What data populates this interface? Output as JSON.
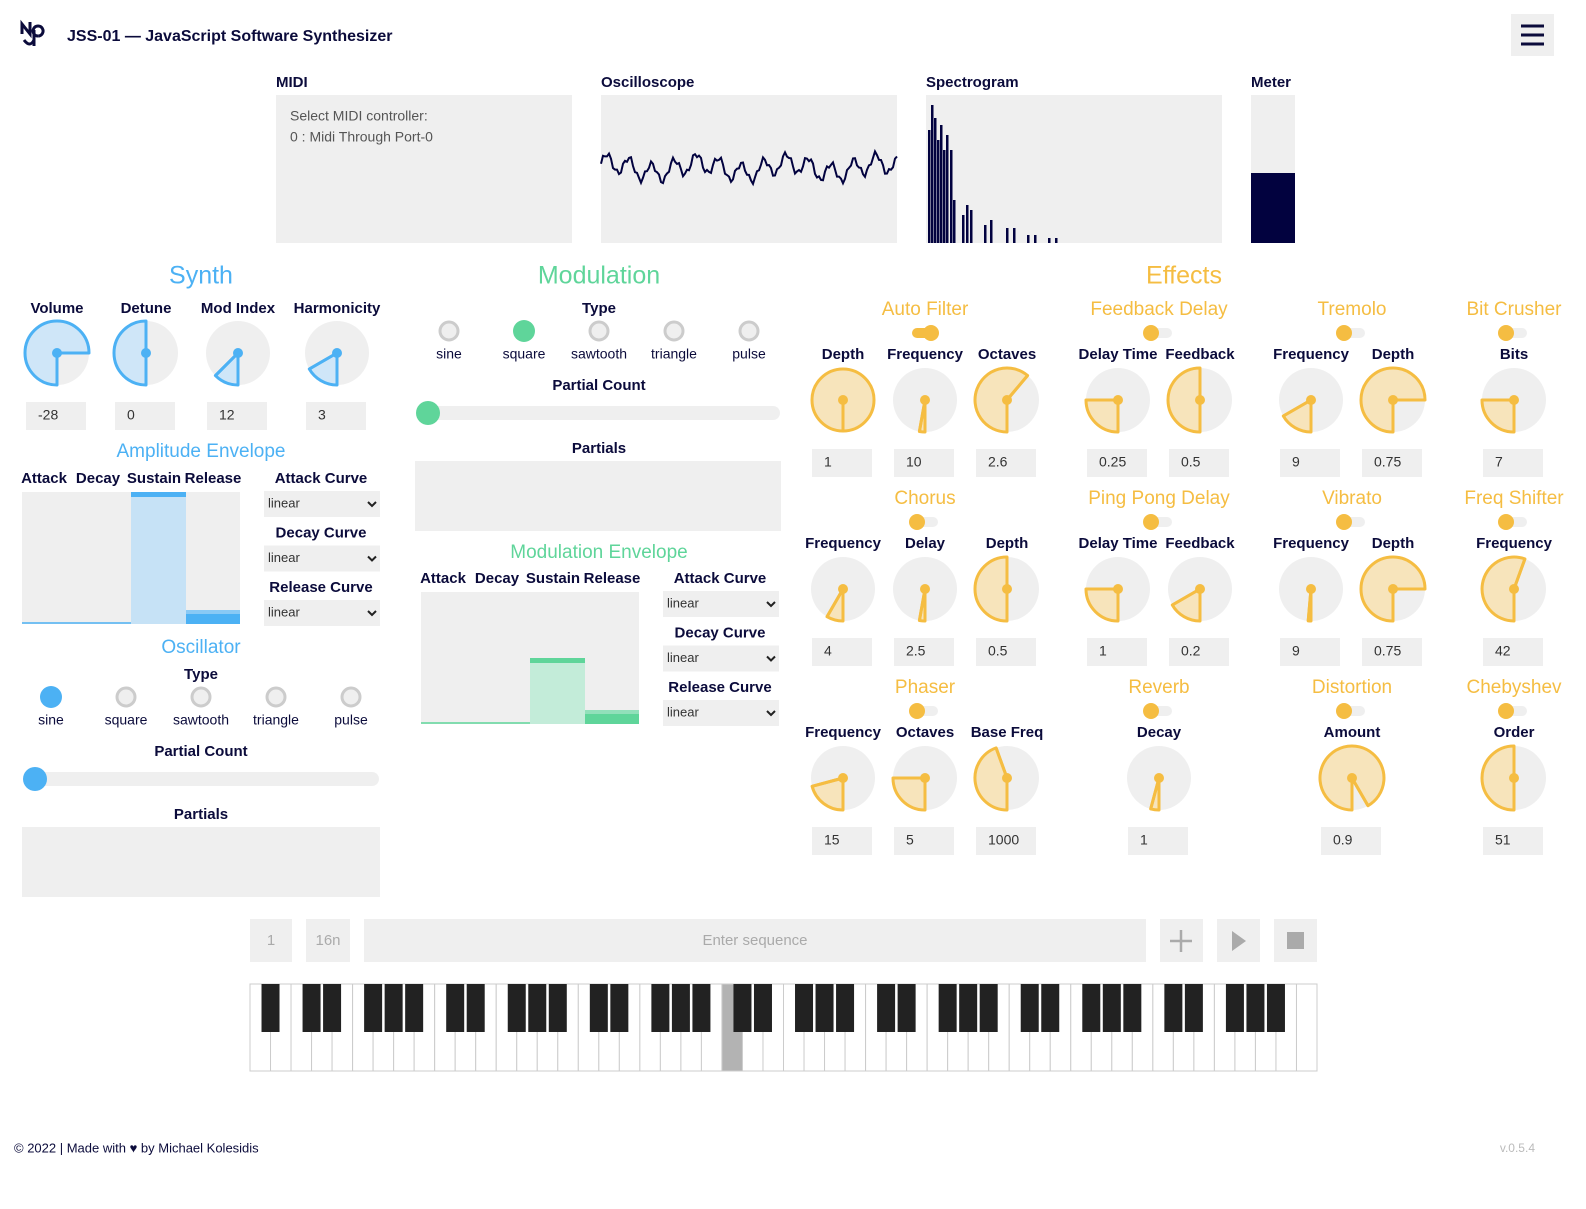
{
  "header": {
    "title": "JSS-01 — JavaScript Software Synthesizer"
  },
  "monitors": {
    "midi": {
      "title": "MIDI",
      "lines": [
        "Select MIDI controller:",
        "0 : Midi Through Port-0"
      ]
    },
    "oscilloscope": "Oscilloscope",
    "spectrogram": "Spectrogram",
    "meter": "Meter"
  },
  "synth": {
    "title": "Synth",
    "knobs": [
      {
        "label": "Volume",
        "value": -28
      },
      {
        "label": "Detune",
        "value": 0
      },
      {
        "label": "Mod Index",
        "value": 12
      },
      {
        "label": "Harmonicity",
        "value": 3
      }
    ],
    "amplitude_envelope": {
      "title": "Amplitude Envelope",
      "stages": [
        "Attack",
        "Decay",
        "Sustain",
        "Release"
      ],
      "curves": [
        {
          "label": "Attack Curve",
          "value": "linear"
        },
        {
          "label": "Decay Curve",
          "value": "linear"
        },
        {
          "label": "Release Curve",
          "value": "linear"
        }
      ]
    },
    "oscillator": {
      "title": "Oscillator",
      "type_label": "Type",
      "types": [
        "sine",
        "square",
        "sawtooth",
        "triangle",
        "pulse"
      ],
      "selected": 0,
      "partial_count": "Partial Count",
      "partials": "Partials"
    }
  },
  "modulation": {
    "title": "Modulation",
    "type_label": "Type",
    "types": [
      "sine",
      "square",
      "sawtooth",
      "triangle",
      "pulse"
    ],
    "selected": 1,
    "partial_count": "Partial Count",
    "partials": "Partials",
    "envelope": {
      "title": "Modulation Envelope",
      "stages": [
        "Attack",
        "Decay",
        "Sustain",
        "Release"
      ],
      "curves": [
        {
          "label": "Attack Curve",
          "value": "linear"
        },
        {
          "label": "Decay Curve",
          "value": "linear"
        },
        {
          "label": "Release Curve",
          "value": "linear"
        }
      ]
    }
  },
  "effects": {
    "title": "Effects",
    "units": [
      {
        "name": "Auto Filter",
        "enabled": true,
        "params": [
          {
            "label": "Depth",
            "value": 1
          },
          {
            "label": "Frequency",
            "value": 10
          },
          {
            "label": "Octaves",
            "value": 2.6
          }
        ]
      },
      {
        "name": "Feedback Delay",
        "enabled": false,
        "params": [
          {
            "label": "Delay Time",
            "value": 0.25
          },
          {
            "label": "Feedback",
            "value": 0.5
          }
        ]
      },
      {
        "name": "Tremolo",
        "enabled": false,
        "params": [
          {
            "label": "Frequency",
            "value": 9
          },
          {
            "label": "Depth",
            "value": 0.75
          }
        ]
      },
      {
        "name": "Bit Crusher",
        "enabled": false,
        "params": [
          {
            "label": "Bits",
            "value": 7
          }
        ]
      },
      {
        "name": "Chorus",
        "enabled": false,
        "params": [
          {
            "label": "Frequency",
            "value": 4
          },
          {
            "label": "Delay",
            "value": 2.5
          },
          {
            "label": "Depth",
            "value": 0.5
          }
        ]
      },
      {
        "name": "Ping Pong Delay",
        "enabled": false,
        "params": [
          {
            "label": "Delay Time",
            "value": 1
          },
          {
            "label": "Feedback",
            "value": 0.2
          }
        ]
      },
      {
        "name": "Vibrato",
        "enabled": false,
        "params": [
          {
            "label": "Frequency",
            "value": 9
          },
          {
            "label": "Depth",
            "value": 0.75
          }
        ]
      },
      {
        "name": "Freq Shifter",
        "enabled": false,
        "params": [
          {
            "label": "Frequency",
            "value": 42
          }
        ]
      },
      {
        "name": "Phaser",
        "enabled": false,
        "params": [
          {
            "label": "Frequency",
            "value": 15
          },
          {
            "label": "Octaves",
            "value": 5
          },
          {
            "label": "Base Freq",
            "value": 1000
          }
        ]
      },
      {
        "name": "Reverb",
        "enabled": false,
        "params": [
          {
            "label": "Decay",
            "value": 1
          }
        ]
      },
      {
        "name": "Distortion",
        "enabled": false,
        "params": [
          {
            "label": "Amount",
            "value": 0.9
          }
        ]
      },
      {
        "name": "Chebyshev",
        "enabled": false,
        "params": [
          {
            "label": "Order",
            "value": 51
          }
        ]
      }
    ]
  },
  "sequencer": {
    "steps": 1,
    "note": "16n",
    "placeholder": "Enter sequence"
  },
  "footer": {
    "credit": "© 2022 | Made with ♥ by Michael Kolesidis",
    "version": "v.0.5.4"
  }
}
